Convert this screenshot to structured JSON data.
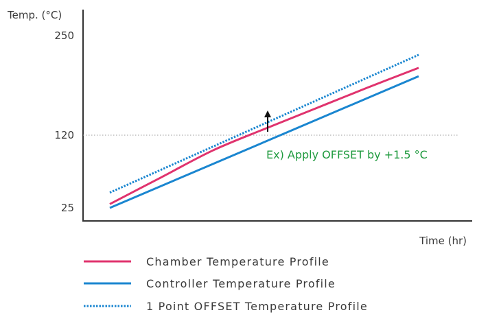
{
  "chart_data": {
    "type": "line",
    "ylabel": "Temp. (°C)",
    "xlabel": "Time (hr)",
    "yticks": [
      {
        "value": 25,
        "label": "25"
      },
      {
        "value": 120,
        "label": "120"
      },
      {
        "value": 250,
        "label": "250"
      }
    ],
    "reference_line": {
      "y": 120,
      "style": "dotted"
    },
    "series": [
      {
        "name": "Chamber Temperature Profile",
        "color": "#e0336e",
        "style": "solid",
        "x": [
          0,
          1,
          2,
          3,
          4,
          5,
          6
        ],
        "y": [
          30,
          65,
          100,
          128,
          155,
          182,
          208
        ]
      },
      {
        "name": "Controller Temperature Profile",
        "color": "#1a86d0",
        "style": "solid",
        "x": [
          0,
          6
        ],
        "y": [
          25,
          197
        ]
      },
      {
        "name": "1 Point OFFSET Temperature Profile",
        "color": "#1a86d0",
        "style": "dotted",
        "x": [
          0,
          6
        ],
        "y": [
          45,
          225
        ]
      }
    ],
    "annotation": {
      "text": "Ex) Apply OFFSET by +1.5 °C",
      "color": "#1f9a3e"
    }
  }
}
